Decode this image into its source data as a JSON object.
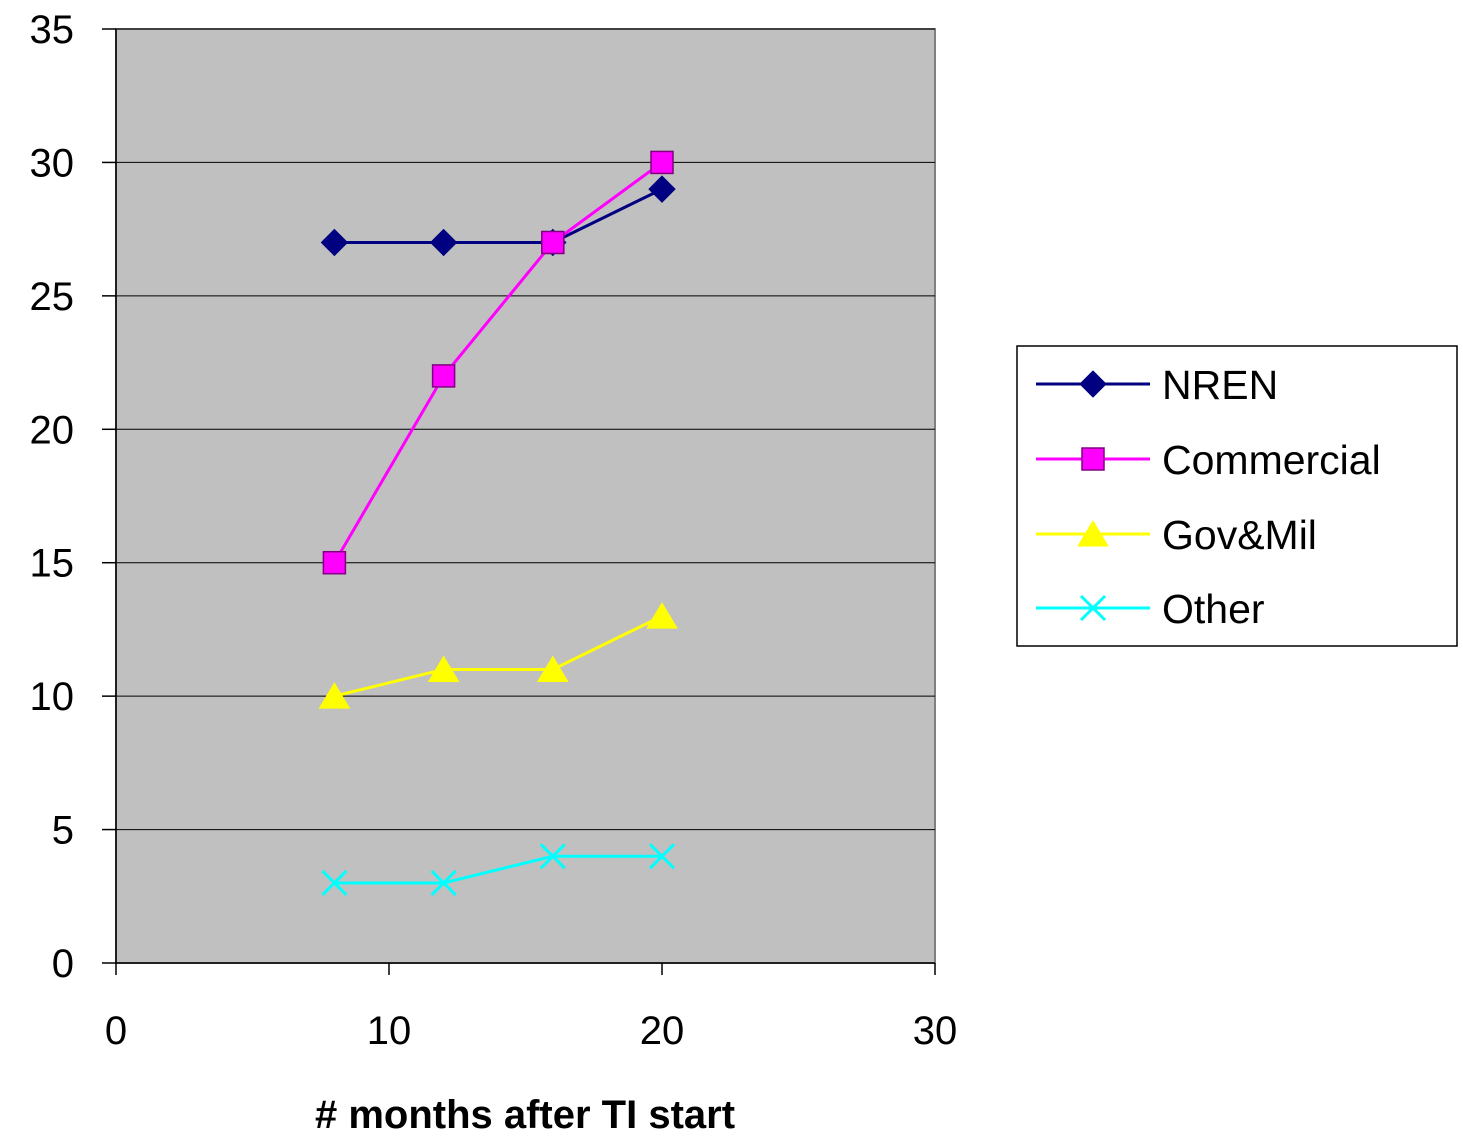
{
  "chart_data": {
    "type": "line",
    "title": "",
    "xlabel": "# months after TI start",
    "ylabel": "",
    "xlim": [
      0,
      30
    ],
    "ylim": [
      0,
      35
    ],
    "xticks": [
      0,
      10,
      20,
      30
    ],
    "yticks": [
      0,
      5,
      10,
      15,
      20,
      25,
      30,
      35
    ],
    "grid": "horizontal major gridlines",
    "plot_background": "#c0c0c0",
    "legend_position": "right",
    "series": [
      {
        "name": "NREN",
        "color": "#000080",
        "marker": "diamond",
        "x": [
          8,
          12,
          16,
          20
        ],
        "y": [
          27,
          27,
          27,
          29
        ]
      },
      {
        "name": "Commercial",
        "color": "#ff00ff",
        "marker": "square",
        "x": [
          8,
          12,
          16,
          20
        ],
        "y": [
          15,
          22,
          27,
          30
        ]
      },
      {
        "name": "Gov&Mil",
        "color": "#ffff00",
        "marker": "triangle",
        "x": [
          8,
          12,
          16,
          20
        ],
        "y": [
          10,
          11,
          11,
          13
        ]
      },
      {
        "name": "Other",
        "color": "#00ffff",
        "marker": "x",
        "x": [
          8,
          12,
          16,
          20
        ],
        "y": [
          3,
          3,
          4,
          4
        ]
      }
    ]
  }
}
